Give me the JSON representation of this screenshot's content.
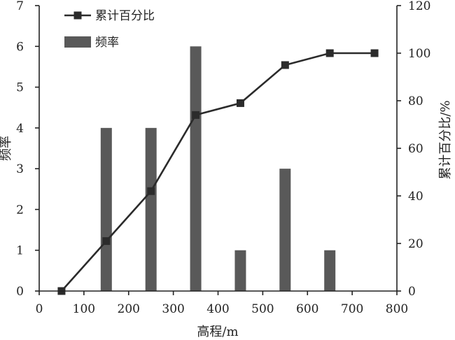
{
  "chart_data": {
    "type": "bar",
    "xlabel": "高程/m",
    "ylabel": "频率",
    "y2label": "累计百分比/%",
    "xlim": [
      0,
      800
    ],
    "ylim": [
      0,
      7
    ],
    "y2lim": [
      0,
      120
    ],
    "x_ticks": [
      0,
      100,
      200,
      300,
      400,
      500,
      600,
      700,
      800
    ],
    "y_ticks": [
      0,
      1,
      2,
      3,
      4,
      5,
      6,
      7
    ],
    "y2_ticks": [
      0,
      20,
      40,
      60,
      80,
      100,
      120
    ],
    "grid": false,
    "legend": {
      "position": "top-left",
      "entries": [
        "累计百分比",
        "频率"
      ]
    },
    "series": [
      {
        "name": "频率",
        "kind": "bar",
        "axis": "left",
        "color": "#595959",
        "x": [
          150,
          250,
          350,
          450,
          550,
          650
        ],
        "values": [
          4,
          4,
          6,
          1,
          3,
          1
        ]
      },
      {
        "name": "累计百分比",
        "kind": "line",
        "axis": "right",
        "color": "#2b2b2b",
        "marker": "square",
        "x": [
          50,
          150,
          250,
          350,
          450,
          550,
          650,
          750
        ],
        "values": [
          0,
          21,
          42,
          74,
          79,
          95,
          100,
          100
        ]
      }
    ]
  }
}
